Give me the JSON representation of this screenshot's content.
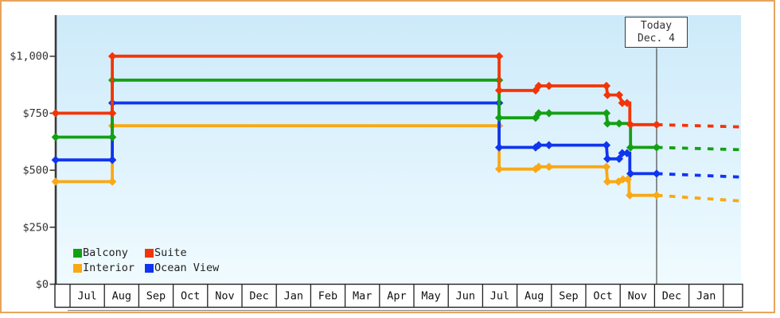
{
  "window": {
    "border_color": "#e8a55c",
    "background": "#ffffff"
  },
  "chart_data": {
    "type": "line",
    "title": "",
    "description": "Cruise cabin price history by category, stepped line chart with projected (dashed) prices after today",
    "grid": false,
    "plot_background_top": "#cdeafa",
    "plot_background_bottom": "#f0fbff",
    "y_axis": {
      "min": 0,
      "max": 1150,
      "ticks": [
        {
          "label": "$1,000",
          "value": 1000
        },
        {
          "label": "$750",
          "value": 750
        },
        {
          "label": "$500",
          "value": 500
        },
        {
          "label": "$250",
          "value": 250
        },
        {
          "label": "$0",
          "value": 0
        }
      ]
    },
    "x_axis": {
      "month_labels": [
        "Jul",
        "Aug",
        "Sep",
        "Oct",
        "Nov",
        "Dec",
        "Jan",
        "Feb",
        "Mar",
        "Apr",
        "May",
        "Jun",
        "Jul",
        "Aug",
        "Sep",
        "Oct",
        "Nov",
        "Dec",
        "Jan"
      ]
    },
    "today": {
      "line1": "Today",
      "line2": "Dec. 4",
      "month_index": 17.06
    },
    "series": [
      {
        "name": "Interior",
        "color": "#faa814",
        "points": [
          [
            -0.42,
            450
          ],
          [
            1.23,
            450
          ],
          [
            1.23,
            695
          ],
          [
            12.48,
            695
          ],
          [
            12.48,
            505
          ],
          [
            13.54,
            505
          ],
          [
            13.63,
            515
          ],
          [
            13.93,
            515
          ],
          [
            15.6,
            515
          ],
          [
            15.63,
            450
          ],
          [
            15.95,
            450
          ],
          [
            16.08,
            460
          ],
          [
            16.26,
            460
          ],
          [
            16.26,
            390
          ],
          [
            17.06,
            390
          ]
        ],
        "markers": [
          [
            -0.42,
            450
          ],
          [
            1.23,
            450
          ],
          [
            1.23,
            695
          ],
          [
            12.48,
            695
          ],
          [
            12.48,
            505
          ],
          [
            13.54,
            505
          ],
          [
            13.63,
            515
          ],
          [
            13.93,
            515
          ],
          [
            15.6,
            515
          ],
          [
            15.63,
            450
          ],
          [
            15.95,
            450
          ],
          [
            16.08,
            460
          ],
          [
            16.22,
            460
          ],
          [
            16.28,
            390
          ],
          [
            17.06,
            390
          ]
        ],
        "dash": [
          [
            17.06,
            390
          ],
          [
            19.5,
            365
          ]
        ]
      },
      {
        "name": "Ocean View",
        "color": "#0f35f0",
        "points": [
          [
            -0.42,
            545
          ],
          [
            1.23,
            545
          ],
          [
            1.23,
            795
          ],
          [
            12.48,
            795
          ],
          [
            12.48,
            600
          ],
          [
            13.54,
            600
          ],
          [
            13.63,
            610
          ],
          [
            13.93,
            610
          ],
          [
            15.6,
            610
          ],
          [
            15.63,
            550
          ],
          [
            15.97,
            550
          ],
          [
            16.06,
            575
          ],
          [
            16.28,
            575
          ],
          [
            16.28,
            485
          ],
          [
            17.06,
            485
          ]
        ],
        "markers": [
          [
            -0.42,
            545
          ],
          [
            1.23,
            545
          ],
          [
            1.23,
            795
          ],
          [
            12.48,
            795
          ],
          [
            12.48,
            600
          ],
          [
            13.54,
            600
          ],
          [
            13.63,
            610
          ],
          [
            13.93,
            610
          ],
          [
            15.6,
            610
          ],
          [
            15.63,
            550
          ],
          [
            15.97,
            550
          ],
          [
            16.06,
            575
          ],
          [
            16.2,
            575
          ],
          [
            16.3,
            485
          ],
          [
            17.06,
            485
          ]
        ],
        "dash": [
          [
            17.06,
            485
          ],
          [
            19.5,
            470
          ]
        ]
      },
      {
        "name": "Balcony",
        "color": "#14a014",
        "points": [
          [
            -0.42,
            645
          ],
          [
            1.23,
            645
          ],
          [
            1.23,
            895
          ],
          [
            12.48,
            895
          ],
          [
            12.48,
            730
          ],
          [
            13.54,
            730
          ],
          [
            13.63,
            750
          ],
          [
            13.93,
            750
          ],
          [
            15.6,
            750
          ],
          [
            15.63,
            705
          ],
          [
            15.97,
            705
          ],
          [
            16.3,
            705
          ],
          [
            16.3,
            600
          ],
          [
            17.06,
            600
          ]
        ],
        "markers": [
          [
            -0.42,
            645
          ],
          [
            1.23,
            645
          ],
          [
            1.23,
            895
          ],
          [
            12.48,
            895
          ],
          [
            12.48,
            730
          ],
          [
            13.54,
            730
          ],
          [
            13.63,
            750
          ],
          [
            13.93,
            750
          ],
          [
            15.6,
            750
          ],
          [
            15.63,
            705
          ],
          [
            15.97,
            705
          ],
          [
            16.3,
            600
          ],
          [
            17.06,
            600
          ]
        ],
        "dash": [
          [
            17.06,
            600
          ],
          [
            19.5,
            590
          ]
        ]
      },
      {
        "name": "Suite",
        "color": "#f23508",
        "points": [
          [
            -0.42,
            750
          ],
          [
            1.23,
            750
          ],
          [
            1.23,
            1000
          ],
          [
            12.48,
            1000
          ],
          [
            12.48,
            850
          ],
          [
            13.54,
            850
          ],
          [
            13.63,
            870
          ],
          [
            13.93,
            870
          ],
          [
            15.6,
            870
          ],
          [
            15.63,
            830
          ],
          [
            15.97,
            830
          ],
          [
            16.06,
            795
          ],
          [
            16.28,
            795
          ],
          [
            16.28,
            700
          ],
          [
            17.06,
            700
          ]
        ],
        "markers": [
          [
            -0.42,
            750
          ],
          [
            1.23,
            750
          ],
          [
            1.23,
            1000
          ],
          [
            12.48,
            1000
          ],
          [
            12.48,
            850
          ],
          [
            13.54,
            850
          ],
          [
            13.63,
            870
          ],
          [
            13.93,
            870
          ],
          [
            15.6,
            870
          ],
          [
            15.63,
            830
          ],
          [
            15.97,
            830
          ],
          [
            16.06,
            795
          ],
          [
            16.2,
            795
          ],
          [
            16.3,
            700
          ],
          [
            17.06,
            700
          ]
        ],
        "dash": [
          [
            17.06,
            700
          ],
          [
            19.5,
            690
          ]
        ]
      }
    ],
    "legend": {
      "position": "bottom-left",
      "items": [
        {
          "label": "Balcony",
          "color": "#14a014"
        },
        {
          "label": "Suite",
          "color": "#f23508"
        },
        {
          "label": "Interior",
          "color": "#faa814"
        },
        {
          "label": "Ocean View",
          "color": "#0f35f0"
        }
      ]
    }
  }
}
